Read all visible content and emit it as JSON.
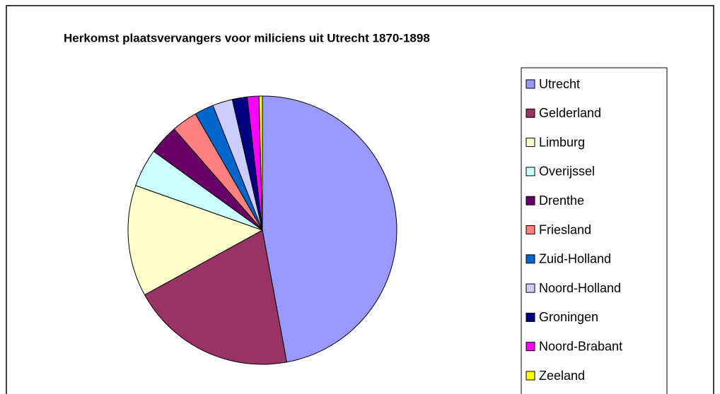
{
  "chart_data": {
    "type": "pie",
    "title": "Herkomst plaatsvervangers voor miliciens uit Utrecht 1870-1898",
    "categories": [
      "Utrecht",
      "Gelderland",
      "Limburg",
      "Overijssel",
      "Drenthe",
      "Friesland",
      "Zuid-Holland",
      "Noord-Holland",
      "Groningen",
      "Noord-Brabant",
      "Zeeland"
    ],
    "values": [
      47.1,
      19.9,
      13.4,
      4.6,
      3.6,
      3.1,
      2.3,
      2.4,
      1.8,
      1.4,
      0.4
    ],
    "colors": [
      "#9999ff",
      "#993366",
      "#ffffcc",
      "#ccffff",
      "#660066",
      "#ff8080",
      "#0066cc",
      "#ccccff",
      "#000080",
      "#ff00ff",
      "#ffff00"
    ],
    "legend": "right"
  }
}
